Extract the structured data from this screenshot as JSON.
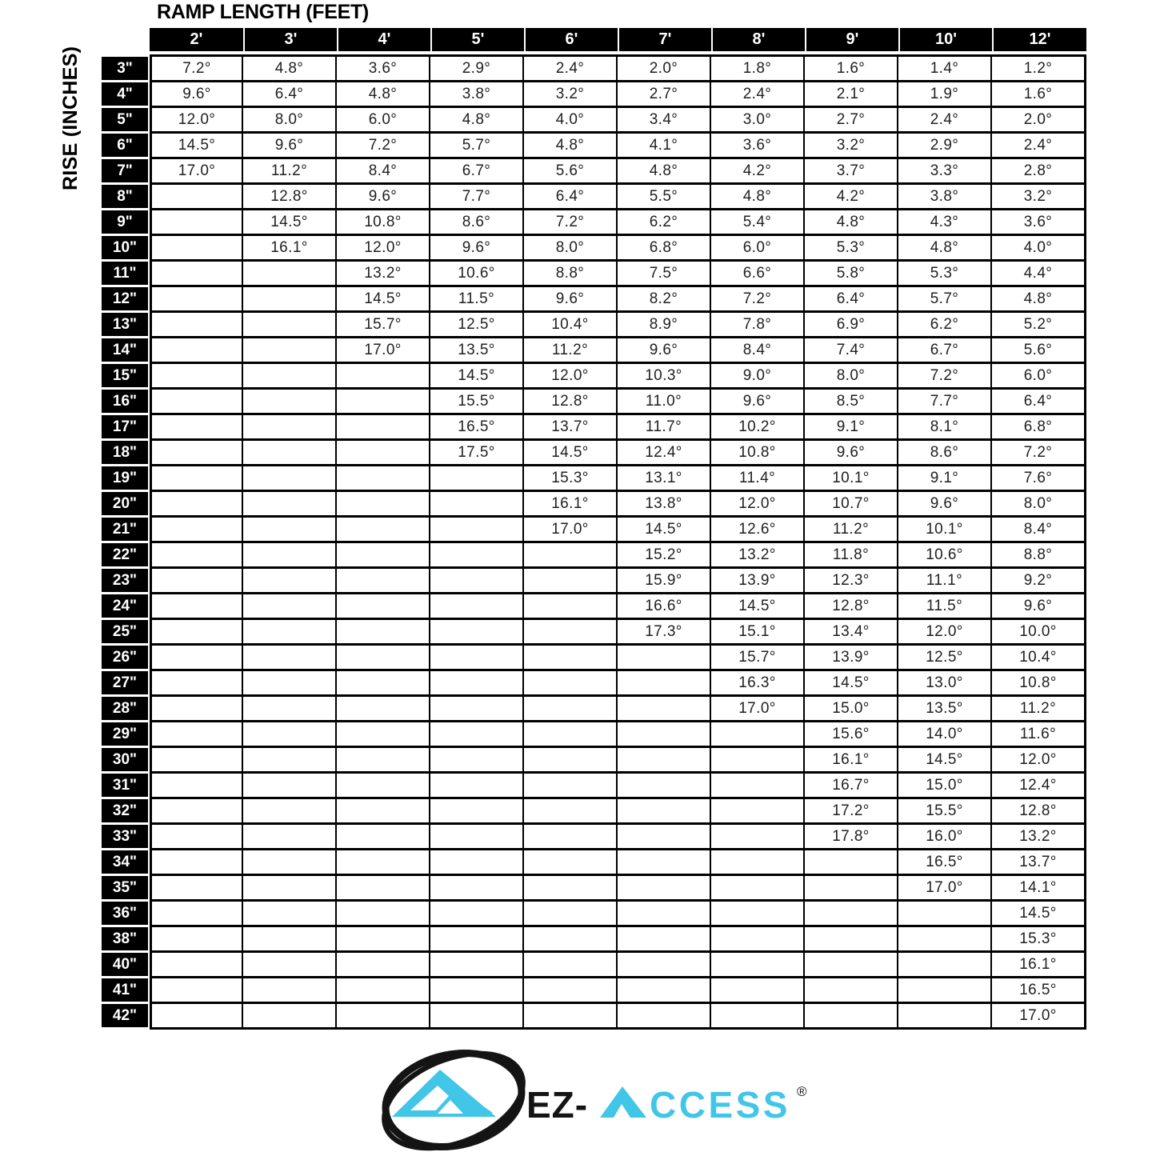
{
  "title": "RAMP LENGTH (FEET)",
  "y_axis_label": "RISE (INCHES)",
  "logo": {
    "brand_name": "EZ-ACCESS",
    "text_dark": "EZ-",
    "text_cyan": "ACCESS",
    "text_cyan_rest": "CCESS",
    "registered_mark": "®",
    "cyan_color": "#41C6E8",
    "dark_color": "#141414"
  },
  "chart_data": {
    "type": "table",
    "unit": "°",
    "x_axis_title": "RAMP LENGTH (FEET)",
    "y_axis_title": "RISE (INCHES)",
    "columns": [
      "2'",
      "3'",
      "4'",
      "5'",
      "6'",
      "7'",
      "8'",
      "9'",
      "10'",
      "12'"
    ],
    "rows": [
      "3\"",
      "4\"",
      "5\"",
      "6\"",
      "7\"",
      "8\"",
      "9\"",
      "10\"",
      "11\"",
      "12\"",
      "13\"",
      "14\"",
      "15\"",
      "16\"",
      "17\"",
      "18\"",
      "19\"",
      "20\"",
      "21\"",
      "22\"",
      "23\"",
      "24\"",
      "25\"",
      "26\"",
      "27\"",
      "28\"",
      "29\"",
      "30\"",
      "31\"",
      "32\"",
      "33\"",
      "34\"",
      "35\"",
      "36\"",
      "38\"",
      "40\"",
      "41\"",
      "42\""
    ],
    "values": [
      [
        "7.2",
        "4.8",
        "3.6",
        "2.9",
        "2.4",
        "2.0",
        "1.8",
        "1.6",
        "1.4",
        "1.2"
      ],
      [
        "9.6",
        "6.4",
        "4.8",
        "3.8",
        "3.2",
        "2.7",
        "2.4",
        "2.1",
        "1.9",
        "1.6"
      ],
      [
        "12.0",
        "8.0",
        "6.0",
        "4.8",
        "4.0",
        "3.4",
        "3.0",
        "2.7",
        "2.4",
        "2.0"
      ],
      [
        "14.5",
        "9.6",
        "7.2",
        "5.7",
        "4.8",
        "4.1",
        "3.6",
        "3.2",
        "2.9",
        "2.4"
      ],
      [
        "17.0",
        "11.2",
        "8.4",
        "6.7",
        "5.6",
        "4.8",
        "4.2",
        "3.7",
        "3.3",
        "2.8"
      ],
      [
        null,
        "12.8",
        "9.6",
        "7.7",
        "6.4",
        "5.5",
        "4.8",
        "4.2",
        "3.8",
        "3.2"
      ],
      [
        null,
        "14.5",
        "10.8",
        "8.6",
        "7.2",
        "6.2",
        "5.4",
        "4.8",
        "4.3",
        "3.6"
      ],
      [
        null,
        "16.1",
        "12.0",
        "9.6",
        "8.0",
        "6.8",
        "6.0",
        "5.3",
        "4.8",
        "4.0"
      ],
      [
        null,
        null,
        "13.2",
        "10.6",
        "8.8",
        "7.5",
        "6.6",
        "5.8",
        "5.3",
        "4.4"
      ],
      [
        null,
        null,
        "14.5",
        "11.5",
        "9.6",
        "8.2",
        "7.2",
        "6.4",
        "5.7",
        "4.8"
      ],
      [
        null,
        null,
        "15.7",
        "12.5",
        "10.4",
        "8.9",
        "7.8",
        "6.9",
        "6.2",
        "5.2"
      ],
      [
        null,
        null,
        "17.0",
        "13.5",
        "11.2",
        "9.6",
        "8.4",
        "7.4",
        "6.7",
        "5.6"
      ],
      [
        null,
        null,
        null,
        "14.5",
        "12.0",
        "10.3",
        "9.0",
        "8.0",
        "7.2",
        "6.0"
      ],
      [
        null,
        null,
        null,
        "15.5",
        "12.8",
        "11.0",
        "9.6",
        "8.5",
        "7.7",
        "6.4"
      ],
      [
        null,
        null,
        null,
        "16.5",
        "13.7",
        "11.7",
        "10.2",
        "9.1",
        "8.1",
        "6.8"
      ],
      [
        null,
        null,
        null,
        "17.5",
        "14.5",
        "12.4",
        "10.8",
        "9.6",
        "8.6",
        "7.2"
      ],
      [
        null,
        null,
        null,
        null,
        "15.3",
        "13.1",
        "11.4",
        "10.1",
        "9.1",
        "7.6"
      ],
      [
        null,
        null,
        null,
        null,
        "16.1",
        "13.8",
        "12.0",
        "10.7",
        "9.6",
        "8.0"
      ],
      [
        null,
        null,
        null,
        null,
        "17.0",
        "14.5",
        "12.6",
        "11.2",
        "10.1",
        "8.4"
      ],
      [
        null,
        null,
        null,
        null,
        null,
        "15.2",
        "13.2",
        "11.8",
        "10.6",
        "8.8"
      ],
      [
        null,
        null,
        null,
        null,
        null,
        "15.9",
        "13.9",
        "12.3",
        "11.1",
        "9.2"
      ],
      [
        null,
        null,
        null,
        null,
        null,
        "16.6",
        "14.5",
        "12.8",
        "11.5",
        "9.6"
      ],
      [
        null,
        null,
        null,
        null,
        null,
        "17.3",
        "15.1",
        "13.4",
        "12.0",
        "10.0"
      ],
      [
        null,
        null,
        null,
        null,
        null,
        null,
        "15.7",
        "13.9",
        "12.5",
        "10.4"
      ],
      [
        null,
        null,
        null,
        null,
        null,
        null,
        "16.3",
        "14.5",
        "13.0",
        "10.8"
      ],
      [
        null,
        null,
        null,
        null,
        null,
        null,
        "17.0",
        "15.0",
        "13.5",
        "11.2"
      ],
      [
        null,
        null,
        null,
        null,
        null,
        null,
        null,
        "15.6",
        "14.0",
        "11.6"
      ],
      [
        null,
        null,
        null,
        null,
        null,
        null,
        null,
        "16.1",
        "14.5",
        "12.0"
      ],
      [
        null,
        null,
        null,
        null,
        null,
        null,
        null,
        "16.7",
        "15.0",
        "12.4"
      ],
      [
        null,
        null,
        null,
        null,
        null,
        null,
        null,
        "17.2",
        "15.5",
        "12.8"
      ],
      [
        null,
        null,
        null,
        null,
        null,
        null,
        null,
        "17.8",
        "16.0",
        "13.2"
      ],
      [
        null,
        null,
        null,
        null,
        null,
        null,
        null,
        null,
        "16.5",
        "13.7"
      ],
      [
        null,
        null,
        null,
        null,
        null,
        null,
        null,
        null,
        "17.0",
        "14.1"
      ],
      [
        null,
        null,
        null,
        null,
        null,
        null,
        null,
        null,
        null,
        "14.5"
      ],
      [
        null,
        null,
        null,
        null,
        null,
        null,
        null,
        null,
        null,
        "15.3"
      ],
      [
        null,
        null,
        null,
        null,
        null,
        null,
        null,
        null,
        null,
        "16.1"
      ],
      [
        null,
        null,
        null,
        null,
        null,
        null,
        null,
        null,
        null,
        "16.5"
      ],
      [
        null,
        null,
        null,
        null,
        null,
        null,
        null,
        null,
        null,
        "17.0"
      ]
    ]
  }
}
